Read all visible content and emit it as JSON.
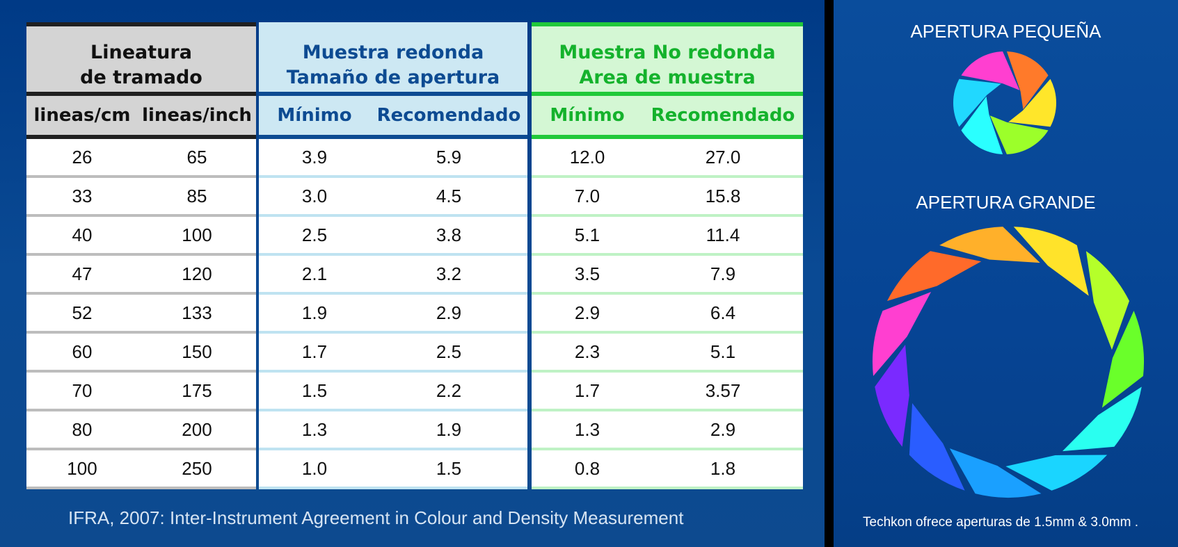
{
  "table": {
    "group1": {
      "title_line1": "Lineatura",
      "title_line2": "de tramado",
      "col1": "lineas/cm",
      "col2": "lineas/inch"
    },
    "group2": {
      "title_line1": "Muestra redonda",
      "title_line2": "Tamaño de apertura",
      "col1": "Mínimo",
      "col2": "Recomendado"
    },
    "group3": {
      "title_line1": "Muestra No redonda",
      "title_line2": "Area de muestra",
      "col1": "Mínimo",
      "col2": "Recomendado"
    },
    "rows": [
      [
        "26",
        "65",
        "3.9",
        "5.9",
        "12.0",
        "27.0"
      ],
      [
        "33",
        "85",
        "3.0",
        "4.5",
        "7.0",
        "15.8"
      ],
      [
        "40",
        "100",
        "2.5",
        "3.8",
        "5.1",
        "11.4"
      ],
      [
        "47",
        "120",
        "2.1",
        "3.2",
        "3.5",
        "7.9"
      ],
      [
        "52",
        "133",
        "1.9",
        "2.9",
        "2.9",
        "6.4"
      ],
      [
        "60",
        "150",
        "1.7",
        "2.5",
        "2.3",
        "5.1"
      ],
      [
        "70",
        "175",
        "1.5",
        "2.2",
        "1.7",
        "3.57"
      ],
      [
        "80",
        "200",
        "1.3",
        "1.9",
        "1.3",
        "2.9"
      ],
      [
        "100",
        "250",
        "1.0",
        "1.5",
        "0.8",
        "1.8"
      ]
    ]
  },
  "source": "IFRA, 2007: Inter-Instrument Agreement in Colour and Density Measurement",
  "small_aperture": {
    "title": "APERTURA PEQUEÑA",
    "icon": "aperture-small-icon"
  },
  "large_aperture": {
    "title": "APERTURA GRANDE",
    "icon": "aperture-large-icon"
  },
  "note": "Techkon ofrece aperturas de 1.5mm & 3.0mm .",
  "colors": {
    "background": "#0a4a94",
    "blue_accent": "#0d4b92",
    "green_accent": "#21c93a",
    "gray_header": "#d4d4d4",
    "small_blades": [
      "#ff7a2a",
      "#ffe62a",
      "#9cff2a",
      "#2affff",
      "#21d8ff",
      "#ff3fd0"
    ],
    "large_blades": [
      "#ffe32a",
      "#b5ff2a",
      "#6aff2a",
      "#2afff0",
      "#1ad5ff",
      "#1aa0ff",
      "#2a5dff",
      "#7a2aff",
      "#ff3fd0",
      "#ff6a2a",
      "#ffb02a"
    ]
  }
}
